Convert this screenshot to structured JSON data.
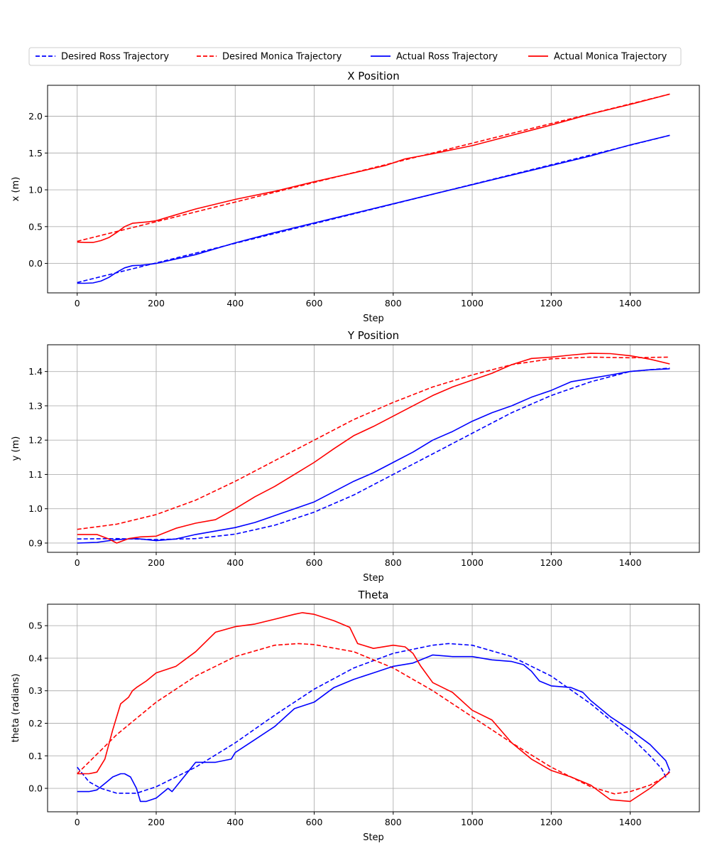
{
  "legend": {
    "placement": "top-center",
    "entries": [
      {
        "label": "Desired Ross Trajectory",
        "color": "#0000ff",
        "style": "dashed"
      },
      {
        "label": "Desired Monica Trajectory",
        "color": "#ff0000",
        "style": "dashed"
      },
      {
        "label": "Actual Ross Trajectory",
        "color": "#0000ff",
        "style": "solid"
      },
      {
        "label": "Actual Monica Trajectory",
        "color": "#ff0000",
        "style": "solid"
      }
    ]
  },
  "chart_data": [
    {
      "type": "line",
      "title": "X Position",
      "xlabel": "Step",
      "ylabel": "x (m)",
      "xlim": [
        -75,
        1575
      ],
      "ylim": [
        -0.4,
        2.42
      ],
      "xticks": [
        0,
        200,
        400,
        600,
        800,
        1000,
        1200,
        1400
      ],
      "yticks": [
        0.0,
        0.5,
        1.0,
        1.5,
        2.0
      ],
      "ytick_labels": [
        "0.0",
        "0.5",
        "1.0",
        "1.5",
        "2.0"
      ],
      "grid": true,
      "series": [
        {
          "name": "Desired Ross Trajectory",
          "color": "#0000ff",
          "style": "dashed",
          "x": [
            0,
            1500
          ],
          "y": [
            -0.26,
            1.74
          ]
        },
        {
          "name": "Desired Monica Trajectory",
          "color": "#ff0000",
          "style": "dashed",
          "x": [
            0,
            1500
          ],
          "y": [
            0.3,
            2.3
          ]
        },
        {
          "name": "Actual Ross Trajectory",
          "color": "#0000ff",
          "style": "solid",
          "x": [
            0,
            20,
            40,
            60,
            80,
            100,
            120,
            140,
            160,
            180,
            200,
            250,
            300,
            400,
            500,
            600,
            700,
            800,
            900,
            1000,
            1100,
            1200,
            1300,
            1400,
            1500
          ],
          "y": [
            -0.27,
            -0.27,
            -0.265,
            -0.24,
            -0.19,
            -0.12,
            -0.06,
            -0.03,
            -0.025,
            -0.015,
            0.0,
            0.06,
            0.12,
            0.28,
            0.42,
            0.55,
            0.68,
            0.81,
            0.94,
            1.07,
            1.2,
            1.33,
            1.46,
            1.61,
            1.74
          ]
        },
        {
          "name": "Actual Monica Trajectory",
          "color": "#ff0000",
          "style": "solid",
          "x": [
            0,
            20,
            40,
            60,
            80,
            100,
            120,
            140,
            160,
            180,
            200,
            250,
            300,
            400,
            500,
            600,
            700,
            780,
            830,
            860,
            900,
            1000,
            1100,
            1200,
            1300,
            1400,
            1500
          ],
          "y": [
            0.29,
            0.285,
            0.285,
            0.31,
            0.35,
            0.42,
            0.5,
            0.545,
            0.555,
            0.565,
            0.58,
            0.66,
            0.74,
            0.87,
            0.98,
            1.11,
            1.23,
            1.33,
            1.42,
            1.45,
            1.49,
            1.6,
            1.74,
            1.88,
            2.03,
            2.16,
            2.3
          ]
        }
      ]
    },
    {
      "type": "line",
      "title": "Y Position",
      "xlabel": "Step",
      "ylabel": "y (m)",
      "xlim": [
        -75,
        1575
      ],
      "ylim": [
        0.873,
        1.478
      ],
      "xticks": [
        0,
        200,
        400,
        600,
        800,
        1000,
        1200,
        1400
      ],
      "yticks": [
        0.9,
        1.0,
        1.1,
        1.2,
        1.3,
        1.4
      ],
      "ytick_labels": [
        "0.9",
        "1.0",
        "1.1",
        "1.2",
        "1.3",
        "1.4"
      ],
      "grid": true,
      "series": [
        {
          "name": "Desired Ross Trajectory",
          "color": "#0000ff",
          "style": "dashed",
          "x": [
            0,
            100,
            200,
            300,
            400,
            500,
            600,
            700,
            800,
            900,
            1000,
            1100,
            1200,
            1300,
            1400,
            1500
          ],
          "y": [
            0.912,
            0.913,
            0.91,
            0.913,
            0.926,
            0.952,
            0.99,
            1.04,
            1.1,
            1.16,
            1.22,
            1.28,
            1.33,
            1.37,
            1.4,
            1.41
          ]
        },
        {
          "name": "Desired Monica Trajectory",
          "color": "#ff0000",
          "style": "dashed",
          "x": [
            0,
            100,
            200,
            300,
            400,
            500,
            600,
            700,
            800,
            900,
            1000,
            1100,
            1200,
            1300,
            1400,
            1500
          ],
          "y": [
            0.94,
            0.955,
            0.983,
            1.025,
            1.08,
            1.14,
            1.2,
            1.26,
            1.31,
            1.355,
            1.39,
            1.42,
            1.437,
            1.442,
            1.44,
            1.442
          ]
        },
        {
          "name": "Actual Ross Trajectory",
          "color": "#0000ff",
          "style": "solid",
          "x": [
            0,
            50,
            100,
            150,
            200,
            250,
            300,
            350,
            400,
            450,
            500,
            550,
            600,
            650,
            700,
            750,
            800,
            850,
            900,
            950,
            1000,
            1050,
            1100,
            1150,
            1200,
            1250,
            1300,
            1350,
            1400,
            1450,
            1500
          ],
          "y": [
            0.9,
            0.902,
            0.91,
            0.913,
            0.907,
            0.912,
            0.925,
            0.935,
            0.945,
            0.96,
            0.98,
            1.0,
            1.02,
            1.05,
            1.08,
            1.105,
            1.135,
            1.165,
            1.2,
            1.225,
            1.255,
            1.28,
            1.3,
            1.325,
            1.345,
            1.37,
            1.38,
            1.39,
            1.4,
            1.405,
            1.408
          ]
        },
        {
          "name": "Actual Monica Trajectory",
          "color": "#ff0000",
          "style": "solid",
          "x": [
            0,
            50,
            80,
            100,
            130,
            160,
            200,
            250,
            300,
            350,
            400,
            450,
            500,
            550,
            600,
            650,
            700,
            750,
            800,
            850,
            900,
            950,
            1000,
            1050,
            1100,
            1150,
            1200,
            1250,
            1300,
            1350,
            1400,
            1450,
            1500
          ],
          "y": [
            0.925,
            0.925,
            0.912,
            0.9,
            0.913,
            0.918,
            0.92,
            0.943,
            0.958,
            0.968,
            1.0,
            1.035,
            1.065,
            1.1,
            1.135,
            1.175,
            1.213,
            1.24,
            1.27,
            1.3,
            1.33,
            1.355,
            1.375,
            1.395,
            1.42,
            1.438,
            1.442,
            1.448,
            1.453,
            1.452,
            1.446,
            1.436,
            1.422
          ]
        }
      ]
    },
    {
      "type": "line",
      "title": "Theta",
      "xlabel": "Step",
      "ylabel": "theta (radians)",
      "xlim": [
        -75,
        1575
      ],
      "ylim": [
        -0.072,
        0.566
      ],
      "xticks": [
        0,
        200,
        400,
        600,
        800,
        1000,
        1200,
        1400
      ],
      "yticks": [
        0.0,
        0.1,
        0.2,
        0.3,
        0.4,
        0.5
      ],
      "ytick_labels": [
        "0.0",
        "0.1",
        "0.2",
        "0.3",
        "0.4",
        "0.5"
      ],
      "grid": true,
      "series": [
        {
          "name": "Desired Ross Trajectory",
          "color": "#0000ff",
          "style": "dashed",
          "x": [
            0,
            30,
            60,
            100,
            150,
            200,
            300,
            400,
            500,
            600,
            700,
            800,
            900,
            940,
            1000,
            1100,
            1200,
            1300,
            1400,
            1450,
            1480,
            1490,
            1500
          ],
          "y": [
            0.065,
            0.02,
            0.0,
            -0.015,
            -0.015,
            0.005,
            0.065,
            0.14,
            0.225,
            0.305,
            0.37,
            0.415,
            0.44,
            0.445,
            0.44,
            0.405,
            0.345,
            0.26,
            0.16,
            0.1,
            0.06,
            0.035,
            0.055
          ]
        },
        {
          "name": "Desired Monica Trajectory",
          "color": "#ff0000",
          "style": "dashed",
          "x": [
            0,
            100,
            200,
            300,
            400,
            500,
            560,
            600,
            700,
            800,
            900,
            1000,
            1100,
            1200,
            1300,
            1360,
            1400,
            1450,
            1480,
            1500
          ],
          "y": [
            0.045,
            0.165,
            0.265,
            0.345,
            0.405,
            0.44,
            0.445,
            0.442,
            0.42,
            0.37,
            0.3,
            0.22,
            0.14,
            0.065,
            0.005,
            -0.017,
            -0.01,
            0.01,
            0.03,
            0.05
          ]
        },
        {
          "name": "Actual Ross Trajectory",
          "color": "#0000ff",
          "style": "solid",
          "x": [
            0,
            30,
            50,
            70,
            90,
            110,
            120,
            135,
            150,
            160,
            175,
            200,
            220,
            230,
            240,
            260,
            280,
            300,
            350,
            390,
            400,
            450,
            500,
            550,
            600,
            650,
            700,
            750,
            800,
            850,
            900,
            950,
            1000,
            1050,
            1100,
            1130,
            1150,
            1170,
            1200,
            1250,
            1280,
            1300,
            1350,
            1400,
            1450,
            1490,
            1500
          ],
          "y": [
            -0.01,
            -0.01,
            -0.005,
            0.015,
            0.035,
            0.045,
            0.045,
            0.035,
            0.0,
            -0.04,
            -0.04,
            -0.03,
            -0.01,
            0.0,
            -0.01,
            0.02,
            0.05,
            0.08,
            0.08,
            0.09,
            0.11,
            0.15,
            0.19,
            0.245,
            0.265,
            0.31,
            0.335,
            0.355,
            0.375,
            0.385,
            0.41,
            0.405,
            0.405,
            0.395,
            0.39,
            0.38,
            0.36,
            0.33,
            0.315,
            0.31,
            0.295,
            0.27,
            0.22,
            0.18,
            0.135,
            0.085,
            0.055
          ]
        },
        {
          "name": "Actual Monica Trajectory",
          "color": "#ff0000",
          "style": "solid",
          "x": [
            0,
            30,
            50,
            70,
            90,
            110,
            130,
            140,
            150,
            175,
            200,
            250,
            300,
            350,
            400,
            450,
            500,
            550,
            570,
            600,
            650,
            690,
            710,
            750,
            800,
            830,
            850,
            870,
            900,
            950,
            1000,
            1050,
            1100,
            1150,
            1200,
            1250,
            1300,
            1350,
            1400,
            1450,
            1500
          ],
          "y": [
            0.045,
            0.045,
            0.05,
            0.09,
            0.18,
            0.26,
            0.28,
            0.3,
            0.31,
            0.33,
            0.355,
            0.375,
            0.42,
            0.48,
            0.497,
            0.505,
            0.52,
            0.535,
            0.54,
            0.535,
            0.515,
            0.495,
            0.445,
            0.43,
            0.44,
            0.435,
            0.415,
            0.375,
            0.325,
            0.295,
            0.24,
            0.21,
            0.14,
            0.09,
            0.055,
            0.035,
            0.01,
            -0.035,
            -0.04,
            0.0,
            0.05
          ]
        }
      ]
    }
  ]
}
